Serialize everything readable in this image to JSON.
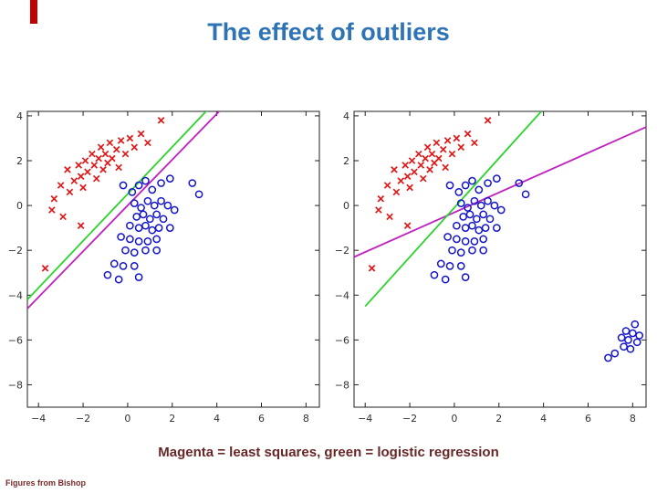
{
  "slide": {
    "title": "The effect of outliers",
    "caption": "Magenta = least squares, green = logistic regression",
    "footer": "Figures from Bishop"
  },
  "theme": {
    "background": "#ffffff",
    "title_color": "#2e74b5",
    "caption_color": "#682626",
    "footer_color": "#7a2a2a",
    "accent_color": "#c00000",
    "axis_color": "#222222",
    "tick_label_color": "#333333"
  },
  "chart_data": [
    {
      "type": "scatter",
      "name": "without-outliers",
      "title": "",
      "xlabel": "",
      "ylabel": "",
      "xlim": [
        -4.5,
        8.6
      ],
      "ylim": [
        -9.0,
        4.2
      ],
      "xticks": [
        -4,
        -2,
        0,
        2,
        4,
        6,
        8
      ],
      "yticks": [
        4,
        2,
        0,
        -2,
        -4,
        -6,
        -8
      ],
      "grid": false,
      "legend": "none",
      "series": [
        {
          "name": "class1-red-x",
          "marker": "x",
          "color": "#e01818",
          "points": [
            [
              -3.7,
              -2.8
            ],
            [
              -3.4,
              -0.2
            ],
            [
              -2.9,
              -0.5
            ],
            [
              -2.1,
              -0.9
            ],
            [
              -3.3,
              0.3
            ],
            [
              -3.0,
              0.9
            ],
            [
              -2.7,
              1.6
            ],
            [
              -2.6,
              0.6
            ],
            [
              -2.4,
              1.1
            ],
            [
              -2.2,
              1.8
            ],
            [
              -2.1,
              1.3
            ],
            [
              -2.0,
              0.8
            ],
            [
              -1.9,
              2.0
            ],
            [
              -1.8,
              1.5
            ],
            [
              -1.6,
              2.3
            ],
            [
              -1.5,
              1.8
            ],
            [
              -1.4,
              1.2
            ],
            [
              -1.3,
              2.1
            ],
            [
              -1.2,
              2.6
            ],
            [
              -1.1,
              1.6
            ],
            [
              -1.0,
              2.3
            ],
            [
              -0.9,
              1.9
            ],
            [
              -0.8,
              2.8
            ],
            [
              -0.7,
              2.1
            ],
            [
              -0.5,
              2.5
            ],
            [
              -0.4,
              1.7
            ],
            [
              -0.3,
              2.9
            ],
            [
              -0.1,
              2.3
            ],
            [
              0.1,
              3.0
            ],
            [
              0.3,
              2.6
            ],
            [
              0.6,
              3.2
            ],
            [
              0.9,
              2.8
            ],
            [
              1.5,
              3.8
            ]
          ]
        },
        {
          "name": "class2-blue-o",
          "marker": "o",
          "color": "#1515cc",
          "points": [
            [
              -0.2,
              0.9
            ],
            [
              0.2,
              0.6
            ],
            [
              0.5,
              0.9
            ],
            [
              0.8,
              1.1
            ],
            [
              1.1,
              0.7
            ],
            [
              1.5,
              1.0
            ],
            [
              1.9,
              1.2
            ],
            [
              2.9,
              1.0
            ],
            [
              3.2,
              0.5
            ],
            [
              0.3,
              0.1
            ],
            [
              0.6,
              -0.1
            ],
            [
              0.9,
              0.2
            ],
            [
              1.2,
              0.0
            ],
            [
              1.5,
              0.2
            ],
            [
              1.8,
              0.0
            ],
            [
              2.1,
              -0.2
            ],
            [
              0.4,
              -0.5
            ],
            [
              0.7,
              -0.4
            ],
            [
              1.0,
              -0.6
            ],
            [
              1.3,
              -0.4
            ],
            [
              1.6,
              -0.6
            ],
            [
              0.1,
              -0.9
            ],
            [
              0.5,
              -1.0
            ],
            [
              0.8,
              -0.9
            ],
            [
              1.1,
              -1.1
            ],
            [
              1.4,
              -1.0
            ],
            [
              1.9,
              -1.0
            ],
            [
              -0.3,
              -1.4
            ],
            [
              0.1,
              -1.5
            ],
            [
              0.5,
              -1.6
            ],
            [
              0.9,
              -1.6
            ],
            [
              1.3,
              -1.5
            ],
            [
              -0.1,
              -2.0
            ],
            [
              0.3,
              -2.1
            ],
            [
              0.8,
              -2.0
            ],
            [
              1.3,
              -2.0
            ],
            [
              -0.6,
              -2.6
            ],
            [
              -0.2,
              -2.7
            ],
            [
              0.3,
              -2.7
            ],
            [
              -0.9,
              -3.1
            ],
            [
              -0.4,
              -3.3
            ],
            [
              0.5,
              -3.2
            ]
          ]
        }
      ],
      "lines": [
        {
          "name": "least-squares",
          "color": "#c020c0",
          "from": [
            -4.5,
            -4.6
          ],
          "to": [
            4.4,
            4.5
          ]
        },
        {
          "name": "logistic-regression",
          "color": "#2bd42b",
          "from": [
            -4.5,
            -4.2
          ],
          "to": [
            3.8,
            4.5
          ]
        }
      ]
    },
    {
      "type": "scatter",
      "name": "with-outliers",
      "title": "",
      "xlabel": "",
      "ylabel": "",
      "xlim": [
        -4.5,
        8.6
      ],
      "ylim": [
        -9.0,
        4.2
      ],
      "xticks": [
        -4,
        -2,
        0,
        2,
        4,
        6,
        8
      ],
      "yticks": [
        4,
        2,
        0,
        -2,
        -4,
        -6,
        -8
      ],
      "grid": false,
      "legend": "none",
      "series": [
        {
          "name": "class1-red-x",
          "marker": "x",
          "color": "#e01818",
          "points": [
            [
              -3.7,
              -2.8
            ],
            [
              -3.4,
              -0.2
            ],
            [
              -2.9,
              -0.5
            ],
            [
              -2.1,
              -0.9
            ],
            [
              -3.3,
              0.3
            ],
            [
              -3.0,
              0.9
            ],
            [
              -2.7,
              1.6
            ],
            [
              -2.6,
              0.6
            ],
            [
              -2.4,
              1.1
            ],
            [
              -2.2,
              1.8
            ],
            [
              -2.1,
              1.3
            ],
            [
              -2.0,
              0.8
            ],
            [
              -1.9,
              2.0
            ],
            [
              -1.8,
              1.5
            ],
            [
              -1.6,
              2.3
            ],
            [
              -1.5,
              1.8
            ],
            [
              -1.4,
              1.2
            ],
            [
              -1.3,
              2.1
            ],
            [
              -1.2,
              2.6
            ],
            [
              -1.1,
              1.6
            ],
            [
              -1.0,
              2.3
            ],
            [
              -0.9,
              1.9
            ],
            [
              -0.8,
              2.8
            ],
            [
              -0.7,
              2.1
            ],
            [
              -0.5,
              2.5
            ],
            [
              -0.4,
              1.7
            ],
            [
              -0.3,
              2.9
            ],
            [
              -0.1,
              2.3
            ],
            [
              0.1,
              3.0
            ],
            [
              0.3,
              2.6
            ],
            [
              0.6,
              3.2
            ],
            [
              0.9,
              2.8
            ],
            [
              1.5,
              3.8
            ]
          ]
        },
        {
          "name": "class2-blue-o",
          "marker": "o",
          "color": "#1515cc",
          "points": [
            [
              -0.2,
              0.9
            ],
            [
              0.2,
              0.6
            ],
            [
              0.5,
              0.9
            ],
            [
              0.8,
              1.1
            ],
            [
              1.1,
              0.7
            ],
            [
              1.5,
              1.0
            ],
            [
              1.9,
              1.2
            ],
            [
              2.9,
              1.0
            ],
            [
              3.2,
              0.5
            ],
            [
              0.3,
              0.1
            ],
            [
              0.6,
              -0.1
            ],
            [
              0.9,
              0.2
            ],
            [
              1.2,
              0.0
            ],
            [
              1.5,
              0.2
            ],
            [
              1.8,
              0.0
            ],
            [
              2.1,
              -0.2
            ],
            [
              0.4,
              -0.5
            ],
            [
              0.7,
              -0.4
            ],
            [
              1.0,
              -0.6
            ],
            [
              1.3,
              -0.4
            ],
            [
              1.6,
              -0.6
            ],
            [
              0.1,
              -0.9
            ],
            [
              0.5,
              -1.0
            ],
            [
              0.8,
              -0.9
            ],
            [
              1.1,
              -1.1
            ],
            [
              1.4,
              -1.0
            ],
            [
              1.9,
              -1.0
            ],
            [
              -0.3,
              -1.4
            ],
            [
              0.1,
              -1.5
            ],
            [
              0.5,
              -1.6
            ],
            [
              0.9,
              -1.6
            ],
            [
              1.3,
              -1.5
            ],
            [
              -0.1,
              -2.0
            ],
            [
              0.3,
              -2.1
            ],
            [
              0.8,
              -2.0
            ],
            [
              1.3,
              -2.0
            ],
            [
              -0.6,
              -2.6
            ],
            [
              -0.2,
              -2.7
            ],
            [
              0.3,
              -2.7
            ],
            [
              -0.9,
              -3.1
            ],
            [
              -0.4,
              -3.3
            ],
            [
              0.5,
              -3.2
            ]
          ]
        },
        {
          "name": "class2-blue-o-outliers",
          "marker": "o",
          "color": "#1515cc",
          "points": [
            [
              8.1,
              -5.3
            ],
            [
              7.7,
              -5.6
            ],
            [
              8.0,
              -5.7
            ],
            [
              8.3,
              -5.8
            ],
            [
              7.5,
              -5.9
            ],
            [
              7.8,
              -6.0
            ],
            [
              8.2,
              -6.1
            ],
            [
              7.6,
              -6.3
            ],
            [
              7.9,
              -6.4
            ],
            [
              7.2,
              -6.6
            ],
            [
              6.9,
              -6.8
            ]
          ]
        }
      ],
      "lines": [
        {
          "name": "least-squares",
          "color": "#c020c0",
          "from": [
            -4.5,
            -2.3
          ],
          "to": [
            8.6,
            3.5
          ]
        },
        {
          "name": "logistic-regression",
          "color": "#2bd42b",
          "from": [
            -4.0,
            -4.5
          ],
          "to": [
            3.9,
            4.2
          ]
        }
      ]
    }
  ]
}
